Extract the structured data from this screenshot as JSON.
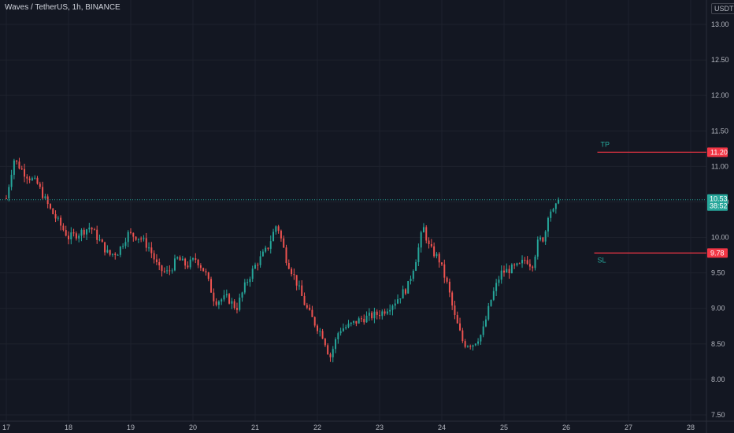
{
  "header": {
    "symbol": "Waves / TetherUS, 1h, BINANCE",
    "unit": "USDT"
  },
  "chart_data": {
    "type": "candlestick",
    "title": "Waves / TetherUS, 1h, BINANCE",
    "xlabel": "",
    "ylabel": "",
    "ylim": [
      7.5,
      13.0
    ],
    "xlim_days": [
      17,
      28
    ],
    "y_ticks": [
      "13.00",
      "12.50",
      "12.00",
      "11.50",
      "11.00",
      "10.50",
      "10.00",
      "9.50",
      "9.00",
      "8.50",
      "8.00",
      "7.50"
    ],
    "x_ticks": [
      "17",
      "18",
      "19",
      "20",
      "21",
      "22",
      "23",
      "24",
      "25",
      "26",
      "27",
      "28"
    ],
    "grid": true,
    "up_color": "#26a69a",
    "down_color": "#ef5350",
    "close_path": [
      [
        17.0,
        10.55
      ],
      [
        17.12,
        11.1
      ],
      [
        17.3,
        10.9
      ],
      [
        17.5,
        10.75
      ],
      [
        17.7,
        10.4
      ],
      [
        17.85,
        10.2
      ],
      [
        18.0,
        10.0
      ],
      [
        18.15,
        10.05
      ],
      [
        18.35,
        10.15
      ],
      [
        18.5,
        9.95
      ],
      [
        18.65,
        9.75
      ],
      [
        18.8,
        9.8
      ],
      [
        18.95,
        10.05
      ],
      [
        19.15,
        10.0
      ],
      [
        19.3,
        9.85
      ],
      [
        19.45,
        9.55
      ],
      [
        19.6,
        9.5
      ],
      [
        19.75,
        9.7
      ],
      [
        19.9,
        9.6
      ],
      [
        20.05,
        9.7
      ],
      [
        20.2,
        9.5
      ],
      [
        20.35,
        9.1
      ],
      [
        20.55,
        9.15
      ],
      [
        20.7,
        9.0
      ],
      [
        20.85,
        9.35
      ],
      [
        21.0,
        9.6
      ],
      [
        21.2,
        9.85
      ],
      [
        21.35,
        10.2
      ],
      [
        21.5,
        9.7
      ],
      [
        21.65,
        9.4
      ],
      [
        21.8,
        9.05
      ],
      [
        21.95,
        8.8
      ],
      [
        22.1,
        8.6
      ],
      [
        22.2,
        8.3
      ],
      [
        22.35,
        8.7
      ],
      [
        22.5,
        8.75
      ],
      [
        22.7,
        8.85
      ],
      [
        22.9,
        8.9
      ],
      [
        23.05,
        8.95
      ],
      [
        23.25,
        9.1
      ],
      [
        23.45,
        9.3
      ],
      [
        23.6,
        9.75
      ],
      [
        23.7,
        10.15
      ],
      [
        23.8,
        9.85
      ],
      [
        23.95,
        9.7
      ],
      [
        24.1,
        9.3
      ],
      [
        24.2,
        8.9
      ],
      [
        24.35,
        8.5
      ],
      [
        24.5,
        8.5
      ],
      [
        24.65,
        8.65
      ],
      [
        24.8,
        9.15
      ],
      [
        24.95,
        9.5
      ],
      [
        25.1,
        9.55
      ],
      [
        25.25,
        9.6
      ],
      [
        25.35,
        9.7
      ],
      [
        25.45,
        9.6
      ],
      [
        25.55,
        9.95
      ],
      [
        25.65,
        10.0
      ],
      [
        25.72,
        10.4
      ],
      [
        25.8,
        10.35
      ],
      [
        25.88,
        10.52
      ]
    ],
    "current_price": {
      "value": 10.53,
      "label": "10.53",
      "countdown": "38:52",
      "color": "#26a69a"
    },
    "levels": [
      {
        "name": "TP",
        "value": 11.2,
        "label": "11.20",
        "text_color": "#26a69a",
        "line_color": "#f23645",
        "x_start_day": 26.5
      },
      {
        "name": "SL",
        "value": 9.78,
        "label": "9.78",
        "text_color": "#26a69a",
        "line_color": "#f23645",
        "x_start_day": 26.45
      }
    ]
  }
}
